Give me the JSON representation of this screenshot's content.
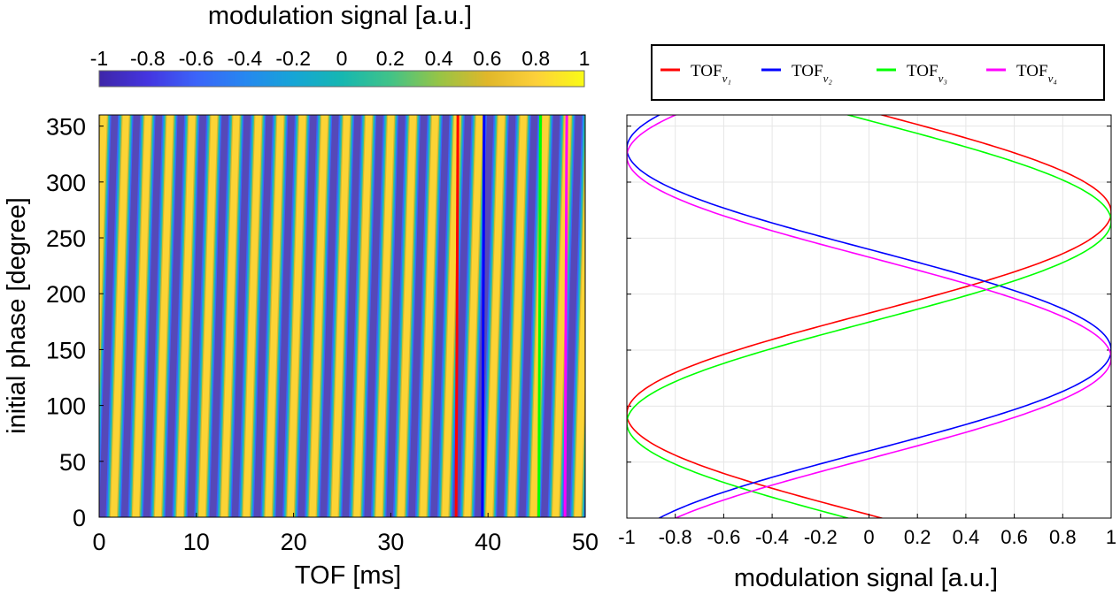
{
  "chart_data": [
    {
      "type": "heatmap",
      "colorbar": {
        "title": "modulation signal [a.u.]",
        "tick_labels": [
          "-1",
          "-0.8",
          "-0.6",
          "-0.4",
          "-0.2",
          "0",
          "0.2",
          "0.4",
          "0.6",
          "0.8",
          "1"
        ],
        "range": [
          -1,
          1
        ],
        "colormap": "parula"
      },
      "xlabel": "TOF [ms]",
      "ylabel": "initial phase [degree]",
      "xlim": [
        0,
        50
      ],
      "ylim": [
        0,
        360
      ],
      "x_tick_labels": [
        "0",
        "10",
        "20",
        "30",
        "40",
        "50"
      ],
      "y_tick_labels": [
        "0",
        "50",
        "100",
        "150",
        "200",
        "250",
        "300",
        "350"
      ],
      "stripe_count_across_xlim": 22,
      "vertical_markers": [
        {
          "name": "TOF_v1",
          "x": 36.9,
          "color": "#ff0000"
        },
        {
          "name": "TOF_v2",
          "x": 39.6,
          "color": "#0000ff"
        },
        {
          "name": "TOF_v3",
          "x": 45.4,
          "color": "#00ff00"
        },
        {
          "name": "TOF_v4",
          "x": 48.1,
          "color": "#ff00ff"
        }
      ]
    },
    {
      "type": "line",
      "xlabel": "modulation signal [a.u.]",
      "xlim": [
        -1,
        1
      ],
      "ylim": [
        0,
        360
      ],
      "x_tick_labels": [
        "-1",
        "-0.8",
        "-0.6",
        "-0.4",
        "-0.2",
        "0",
        "0.2",
        "0.4",
        "0.6",
        "0.8",
        "1"
      ],
      "grid": true,
      "legend_position": "top (outside, horizontal)",
      "series": [
        {
          "name": "TOF",
          "subscript": "v₁",
          "color": "#ff0000",
          "phase_offset_deg": 273
        },
        {
          "name": "TOF",
          "subscript": "v₂",
          "color": "#0000ff",
          "phase_offset_deg": 150
        },
        {
          "name": "TOF",
          "subscript": "v₃",
          "color": "#00ff00",
          "phase_offset_deg": 265
        },
        {
          "name": "TOF",
          "subscript": "v₄",
          "color": "#ff00ff",
          "phase_offset_deg": 143
        }
      ]
    }
  ]
}
